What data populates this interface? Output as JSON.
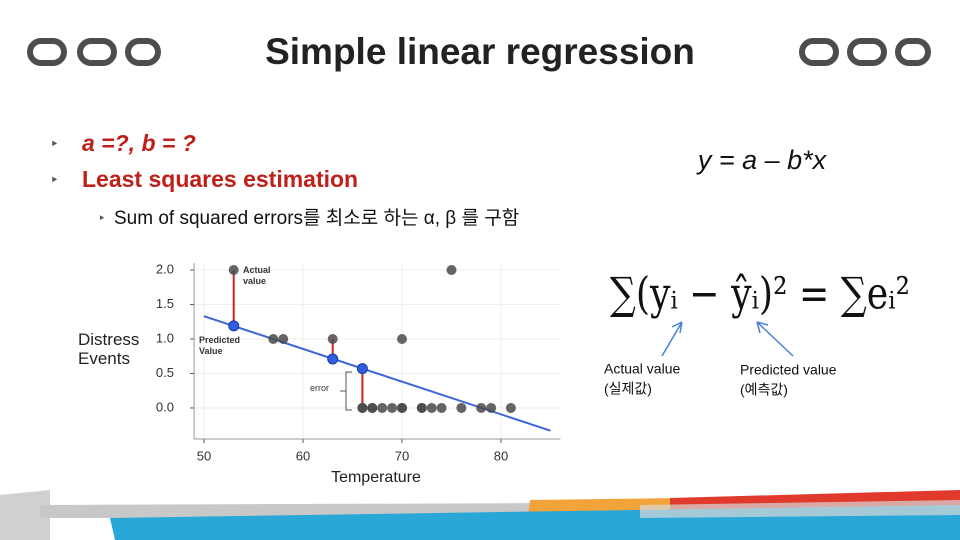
{
  "title": "Simple linear regression",
  "bullets": [
    "a =?,  b = ?",
    "Least squares estimation"
  ],
  "sub_bullet": "Sum of squared errors를 최소로 하는 α, β 를 구함",
  "model": "y = a – b*x",
  "formula": {
    "text": "∑(yᵢ − ŷᵢ)² = ∑eᵢ²",
    "labels": [
      {
        "line1": "Actual value",
        "line2": "(실제값)"
      },
      {
        "line1": "Predicted value",
        "line2": "(예측값)"
      }
    ]
  },
  "chart_data": {
    "type": "scatter",
    "xlabel": "Temperature",
    "ylabel": "Distress Events",
    "annotations": [
      "Actual value",
      "Predicted Value",
      "error"
    ],
    "xlim": [
      49,
      86
    ],
    "ylim": [
      -0.45,
      2.1
    ],
    "xticks": [
      50,
      60,
      70,
      80
    ],
    "yticks": [
      {
        "value": 0,
        "label": "0.0"
      },
      0.5,
      {
        "value": 1,
        "label": "1.0"
      },
      1.5,
      {
        "value": 2,
        "label": "2.0"
      }
    ],
    "grid": true,
    "series": [
      {
        "color": "#4a4a4a",
        "x": [
          53,
          75,
          57,
          58,
          63,
          70,
          66,
          66,
          67,
          67,
          68,
          69,
          70,
          70,
          72,
          72,
          73,
          74,
          76,
          78,
          79,
          81
        ],
        "values": [
          2,
          2,
          1,
          1,
          1,
          1,
          0,
          0,
          0,
          0,
          0,
          0,
          0,
          0,
          0,
          0,
          0,
          0,
          0,
          0,
          0,
          0
        ]
      },
      {
        "color": "#2f5fe0",
        "x": [
          53,
          63,
          66
        ],
        "values": [
          1.19,
          0.71,
          0.57
        ]
      }
    ],
    "fit_line": {
      "color": "#3a66d8",
      "x": [
        50,
        85
      ],
      "values": [
        1.33,
        -0.33
      ]
    },
    "residual_color": "#d02020"
  }
}
